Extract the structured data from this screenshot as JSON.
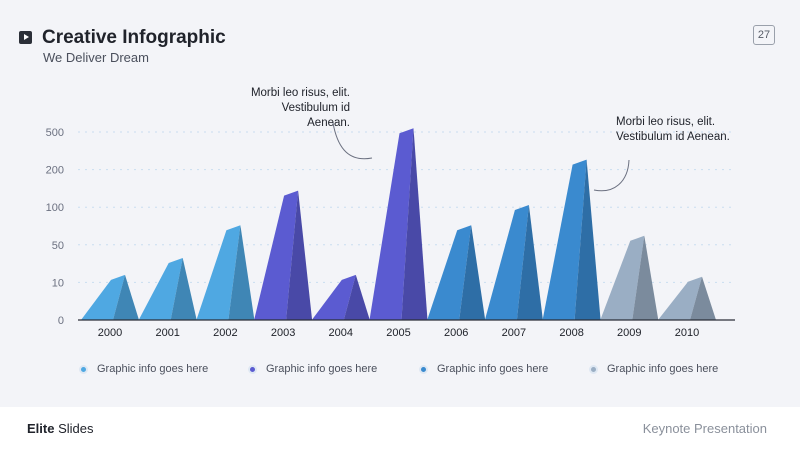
{
  "header": {
    "title": "Creative Infographic",
    "subtitle": "We Deliver Dream",
    "page_number": "27",
    "play_icon": "play-icon"
  },
  "callouts": [
    "Morbi leo risus, elit. Vestibulum id Aenean.",
    "Morbi leo risus, elit. Vestibulum id Aenean."
  ],
  "chart_data": {
    "type": "bar",
    "style": "3d-pyramid",
    "categories": [
      "2000",
      "2001",
      "2002",
      "2003",
      "2004",
      "2005",
      "2006",
      "2007",
      "2008",
      "2009",
      "2010"
    ],
    "y_ticks": [
      "0",
      "10",
      "50",
      "100",
      "200",
      "500"
    ],
    "values": [
      18,
      36,
      76,
      144,
      18,
      530,
      76,
      106,
      280,
      62,
      16
    ],
    "grid": true,
    "colors": [
      "#4fa8e2",
      "#4fa8e2",
      "#4fa8e2",
      "#5b5bd1",
      "#5b5bd1",
      "#5b5bd1",
      "#3a8acf",
      "#3a8acf",
      "#3a8acf",
      "#9aaec4",
      "#9aaec4"
    ],
    "legend_position": "bottom",
    "legend": [
      {
        "label": "Graphic info goes here",
        "color": "#4fa8e2"
      },
      {
        "label": "Graphic info goes here",
        "color": "#5b5bd1"
      },
      {
        "label": "Graphic info goes here",
        "color": "#3a8acf"
      },
      {
        "label": "Graphic info goes here",
        "color": "#9aaec4"
      }
    ]
  },
  "footer": {
    "brand_bold": "Elite",
    "brand_rest": " Slides",
    "right": "Keynote Presentation"
  }
}
